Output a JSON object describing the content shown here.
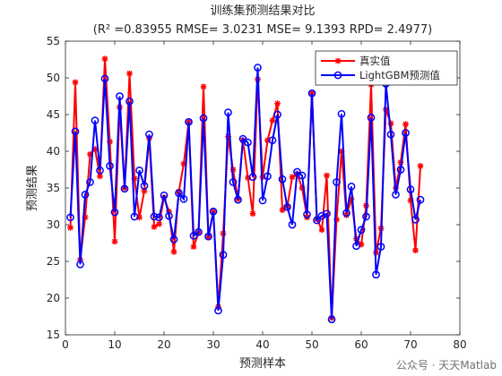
{
  "chart_data": {
    "type": "line",
    "title": "训练集预测结果对比",
    "subtitle": "(R² =0.83955 RMSE= 3.0231 MSE= 9.1393 RPD= 2.4977)",
    "xlabel": "预测样本",
    "ylabel": "预测结果",
    "xlim": [
      0,
      80
    ],
    "ylim": [
      15,
      55
    ],
    "xticks": [
      0,
      10,
      20,
      30,
      40,
      50,
      60,
      70,
      80
    ],
    "yticks": [
      15,
      20,
      25,
      30,
      35,
      40,
      45,
      50,
      55
    ],
    "legend_position": "top-right",
    "grid": false,
    "x": [
      1,
      2,
      3,
      4,
      5,
      6,
      7,
      8,
      9,
      10,
      11,
      12,
      13,
      14,
      15,
      16,
      17,
      18,
      19,
      20,
      21,
      22,
      23,
      24,
      25,
      26,
      27,
      28,
      29,
      30,
      31,
      32,
      33,
      34,
      35,
      36,
      37,
      38,
      39,
      40,
      41,
      42,
      43,
      44,
      45,
      46,
      47,
      48,
      49,
      50,
      51,
      52,
      53,
      54,
      55,
      56,
      57,
      58,
      59,
      60,
      61,
      62,
      63,
      64,
      65,
      66,
      67,
      68,
      69,
      70,
      71,
      72
    ],
    "series": [
      {
        "name": "真实值",
        "color": "#ff0000",
        "marker": "asterisk",
        "values": [
          29.6,
          49.4,
          25.2,
          31.0,
          39.6,
          40.3,
          36.6,
          52.6,
          41.3,
          27.7,
          46.0,
          35.0,
          50.6,
          36.3,
          31.0,
          34.6,
          41.8,
          29.7,
          30.1,
          33.7,
          31.8,
          26.3,
          34.5,
          38.3,
          44.0,
          27.0,
          28.9,
          48.8,
          28.3,
          31.8,
          18.8,
          28.8,
          42.0,
          37.5,
          33.5,
          41.5,
          36.4,
          31.5,
          49.8,
          36.5,
          41.5,
          44.2,
          46.5,
          32.0,
          32.5,
          36.5,
          36.9,
          35.0,
          31.0,
          47.9,
          30.8,
          29.3,
          36.7,
          17.3,
          30.7,
          40.0,
          31.3,
          33.5,
          28.1,
          27.3,
          32.6,
          49.1,
          26.2,
          29.5,
          45.7,
          43.8,
          35.0,
          38.5,
          43.7,
          33.3,
          26.5,
          38.0
        ]
      },
      {
        "name": "LightGBM预测值",
        "color": "#0000ff",
        "marker": "circle",
        "values": [
          31.0,
          42.7,
          24.6,
          34.1,
          35.8,
          44.2,
          37.4,
          49.9,
          38.0,
          31.7,
          47.5,
          34.9,
          46.8,
          31.1,
          37.4,
          35.3,
          42.3,
          31.1,
          31.0,
          34.0,
          31.2,
          28.0,
          34.3,
          33.5,
          44.0,
          28.5,
          29.0,
          44.5,
          28.4,
          31.8,
          18.3,
          25.9,
          45.3,
          35.8,
          33.4,
          41.7,
          41.2,
          36.5,
          51.4,
          33.3,
          36.6,
          41.5,
          45.0,
          36.2,
          32.4,
          30.0,
          37.2,
          36.7,
          31.4,
          47.9,
          30.6,
          31.2,
          31.5,
          17.1,
          35.8,
          45.1,
          31.6,
          35.2,
          27.1,
          29.3,
          31.1,
          44.6,
          23.2,
          27.0,
          49.2,
          42.3,
          34.1,
          37.5,
          42.5,
          34.8,
          30.7,
          33.4
        ]
      }
    ]
  },
  "watermark": "公众号 · 天天Matlab"
}
